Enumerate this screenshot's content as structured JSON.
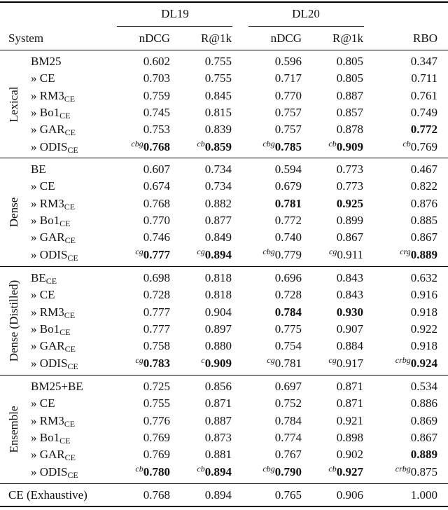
{
  "header": {
    "groups": [
      "DL19",
      "DL20"
    ],
    "columns": [
      "System",
      "nDCG",
      "R@1k",
      "nDCG",
      "R@1k",
      "RBO"
    ]
  },
  "sections": [
    {
      "label": "Lexical",
      "rows": [
        {
          "system": "BM25",
          "cells": [
            "0.602",
            "0.755",
            "0.596",
            "0.805",
            "0.347"
          ]
        },
        {
          "system": "» CE",
          "cells": [
            "0.703",
            "0.755",
            "0.717",
            "0.805",
            "0.711"
          ]
        },
        {
          "system": {
            "name": "» RM3",
            "sub": "CE"
          },
          "cells": [
            "0.759",
            "0.845",
            "0.770",
            "0.887",
            "0.761"
          ]
        },
        {
          "system": {
            "name": "» Bo1",
            "sub": "CE"
          },
          "cells": [
            "0.745",
            "0.815",
            "0.757",
            "0.857",
            "0.749"
          ]
        },
        {
          "system": {
            "name": "» GAR",
            "sub": "CE"
          },
          "cells": [
            "0.753",
            "0.839",
            "0.757",
            "0.878",
            {
              "v": "0.772",
              "bold": true
            }
          ]
        },
        {
          "system": {
            "name": "» ODIS",
            "sub": "CE"
          },
          "cells": [
            {
              "sup": "cbg",
              "v": "0.768",
              "bold": true
            },
            {
              "sup": "cb",
              "v": "0.859",
              "bold": true
            },
            {
              "sup": "cbg",
              "v": "0.785",
              "bold": true
            },
            {
              "sup": "cb",
              "v": "0.909",
              "bold": true
            },
            {
              "sup": "cb",
              "v": "0.769"
            }
          ]
        }
      ]
    },
    {
      "label": "Dense",
      "rows": [
        {
          "system": "BE",
          "cells": [
            "0.607",
            "0.734",
            "0.594",
            "0.773",
            "0.467"
          ]
        },
        {
          "system": "» CE",
          "cells": [
            "0.674",
            "0.734",
            "0.679",
            "0.773",
            "0.822"
          ]
        },
        {
          "system": {
            "name": "» RM3",
            "sub": "CE"
          },
          "cells": [
            "0.768",
            "0.882",
            {
              "v": "0.781",
              "bold": true
            },
            {
              "v": "0.925",
              "bold": true
            },
            "0.876"
          ]
        },
        {
          "system": {
            "name": "» Bo1",
            "sub": "CE"
          },
          "cells": [
            "0.770",
            "0.877",
            "0.772",
            "0.899",
            "0.885"
          ]
        },
        {
          "system": {
            "name": "» GAR",
            "sub": "CE"
          },
          "cells": [
            "0.746",
            "0.849",
            "0.740",
            "0.867",
            "0.867"
          ]
        },
        {
          "system": {
            "name": "» ODIS",
            "sub": "CE"
          },
          "cells": [
            {
              "sup": "cg",
              "v": "0.777",
              "bold": true
            },
            {
              "sup": "cg",
              "v": "0.894",
              "bold": true
            },
            {
              "sup": "cbg",
              "v": "0.779"
            },
            {
              "sup": "cg",
              "v": "0.911"
            },
            {
              "sup": "crg",
              "v": "0.889",
              "bold": true
            }
          ]
        }
      ]
    },
    {
      "label": "Dense (Distilled)",
      "rows": [
        {
          "system": {
            "name": "BE",
            "sub": "CE"
          },
          "cells": [
            "0.698",
            "0.818",
            "0.696",
            "0.843",
            "0.632"
          ]
        },
        {
          "system": "» CE",
          "cells": [
            "0.728",
            "0.818",
            "0.728",
            "0.843",
            "0.916"
          ]
        },
        {
          "system": {
            "name": "» RM3",
            "sub": "CE"
          },
          "cells": [
            "0.777",
            "0.904",
            {
              "v": "0.784",
              "bold": true
            },
            {
              "v": "0.930",
              "bold": true
            },
            "0.918"
          ]
        },
        {
          "system": {
            "name": "» Bo1",
            "sub": "CE"
          },
          "cells": [
            "0.777",
            "0.897",
            "0.775",
            "0.907",
            "0.922"
          ]
        },
        {
          "system": {
            "name": "» GAR",
            "sub": "CE"
          },
          "cells": [
            "0.758",
            "0.880",
            "0.754",
            "0.884",
            "0.918"
          ]
        },
        {
          "system": {
            "name": "» ODIS",
            "sub": "CE"
          },
          "cells": [
            {
              "sup": "cg",
              "v": "0.783",
              "bold": true
            },
            {
              "sup": "c",
              "v": "0.909",
              "bold": true
            },
            {
              "sup": "cg",
              "v": "0.781"
            },
            {
              "sup": "cg",
              "v": "0.917"
            },
            {
              "sup": "crbg",
              "v": "0.924",
              "bold": true
            }
          ]
        }
      ]
    },
    {
      "label": "Ensemble",
      "rows": [
        {
          "system": "BM25+BE",
          "cells": [
            "0.725",
            "0.856",
            "0.697",
            "0.871",
            "0.534"
          ]
        },
        {
          "system": "» CE",
          "cells": [
            "0.755",
            "0.871",
            "0.752",
            "0.871",
            "0.886"
          ]
        },
        {
          "system": {
            "name": "» RM3",
            "sub": "CE"
          },
          "cells": [
            "0.776",
            "0.887",
            "0.784",
            "0.921",
            "0.869"
          ]
        },
        {
          "system": {
            "name": "» Bo1",
            "sub": "CE"
          },
          "cells": [
            "0.769",
            "0.873",
            "0.774",
            "0.898",
            "0.867"
          ]
        },
        {
          "system": {
            "name": "» GAR",
            "sub": "CE"
          },
          "cells": [
            "0.769",
            "0.881",
            "0.767",
            "0.902",
            {
              "v": "0.889",
              "bold": true
            }
          ]
        },
        {
          "system": {
            "name": "» ODIS",
            "sub": "CE"
          },
          "cells": [
            {
              "sup": "cb",
              "v": "0.780",
              "bold": true
            },
            {
              "sup": "cb",
              "v": "0.894",
              "bold": true
            },
            {
              "sup": "cbg",
              "v": "0.790",
              "bold": true
            },
            {
              "sup": "cb",
              "v": "0.927",
              "bold": true
            },
            {
              "sup": "crbg",
              "v": "0.875"
            }
          ]
        }
      ]
    }
  ],
  "footer_row": {
    "system": "CE (Exhaustive)",
    "cells": [
      "0.768",
      "0.894",
      "0.765",
      "0.906",
      "1.000"
    ]
  }
}
